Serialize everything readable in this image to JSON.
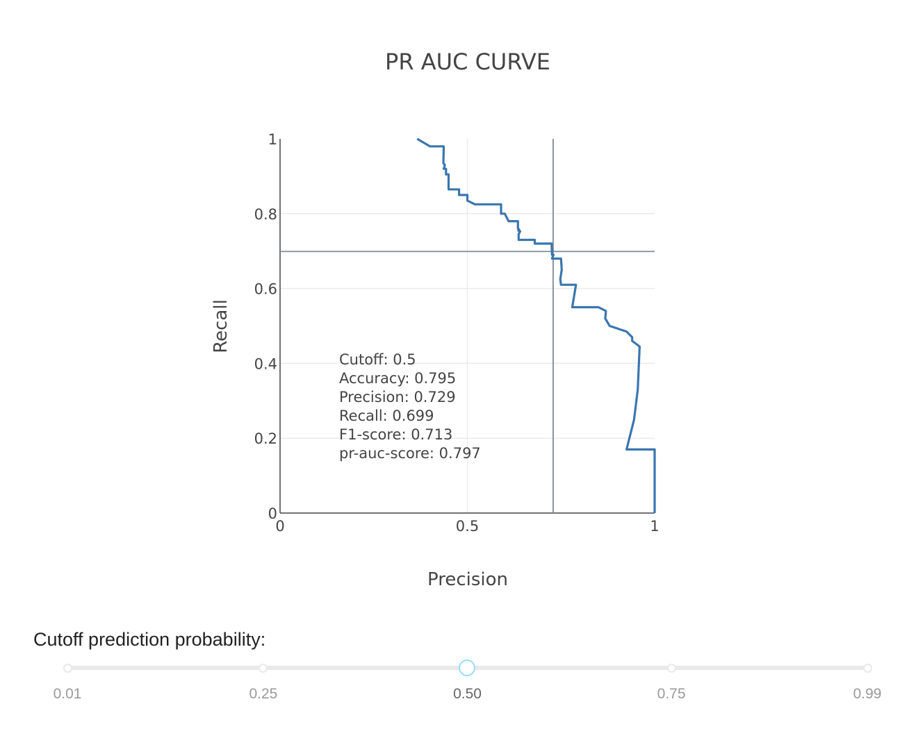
{
  "chart_data": {
    "type": "line",
    "title": "PR AUC CURVE",
    "xlabel": "Precision",
    "ylabel": "Recall",
    "xlim": [
      0,
      1
    ],
    "ylim": [
      0,
      1
    ],
    "x_ticks": [
      "0",
      "0.5",
      "1"
    ],
    "y_ticks": [
      "0",
      "0.2",
      "0.4",
      "0.6",
      "0.8",
      "1"
    ],
    "grid": true,
    "series": [
      {
        "color": "#3a76af",
        "points": [
          [
            0.366,
            1.0
          ],
          [
            0.4,
            0.98
          ],
          [
            0.437,
            0.98
          ],
          [
            0.436,
            0.935
          ],
          [
            0.44,
            0.93
          ],
          [
            0.437,
            0.92
          ],
          [
            0.443,
            0.92
          ],
          [
            0.443,
            0.905
          ],
          [
            0.45,
            0.905
          ],
          [
            0.45,
            0.895
          ],
          [
            0.45,
            0.865
          ],
          [
            0.478,
            0.865
          ],
          [
            0.478,
            0.85
          ],
          [
            0.5,
            0.85
          ],
          [
            0.5,
            0.835
          ],
          [
            0.52,
            0.825
          ],
          [
            0.59,
            0.825
          ],
          [
            0.59,
            0.8
          ],
          [
            0.6,
            0.8
          ],
          [
            0.61,
            0.78
          ],
          [
            0.635,
            0.78
          ],
          [
            0.635,
            0.76
          ],
          [
            0.638,
            0.758
          ],
          [
            0.636,
            0.755
          ],
          [
            0.641,
            0.753
          ],
          [
            0.637,
            0.745
          ],
          [
            0.637,
            0.73
          ],
          [
            0.68,
            0.73
          ],
          [
            0.68,
            0.72
          ],
          [
            0.725,
            0.72
          ],
          [
            0.726,
            0.69
          ],
          [
            0.73,
            0.69
          ],
          [
            0.726,
            0.68
          ],
          [
            0.75,
            0.68
          ],
          [
            0.752,
            0.65
          ],
          [
            0.748,
            0.625
          ],
          [
            0.75,
            0.61
          ],
          [
            0.78,
            0.61
          ],
          [
            0.79,
            0.61
          ],
          [
            0.78,
            0.55
          ],
          [
            0.85,
            0.55
          ],
          [
            0.87,
            0.54
          ],
          [
            0.868,
            0.52
          ],
          [
            0.88,
            0.5
          ],
          [
            0.925,
            0.485
          ],
          [
            0.94,
            0.47
          ],
          [
            0.94,
            0.46
          ],
          [
            0.96,
            0.445
          ],
          [
            0.955,
            0.33
          ],
          [
            0.945,
            0.25
          ],
          [
            0.925,
            0.17
          ],
          [
            1.0,
            0.17
          ],
          [
            1.0,
            0.0
          ]
        ]
      }
    ],
    "threshold_precision": 0.729,
    "threshold_recall": 0.699,
    "annotation": [
      "Cutoff: 0.5",
      "Accuracy: 0.795",
      "Precision: 0.729",
      "Recall: 0.699",
      "F1-score: 0.713",
      "pr-auc-score: 0.797"
    ]
  },
  "slider": {
    "label": "Cutoff prediction probability:",
    "min": 0.01,
    "max": 0.99,
    "value": 0.5,
    "marks": [
      {
        "value": 0.01,
        "label": "0.01"
      },
      {
        "value": 0.25,
        "label": "0.25"
      },
      {
        "value": 0.5,
        "label": "0.50"
      },
      {
        "value": 0.75,
        "label": "0.75"
      },
      {
        "value": 0.99,
        "label": "0.99"
      }
    ],
    "handle_color": "#96dbfa",
    "rail_color": "#e9e9e9"
  }
}
